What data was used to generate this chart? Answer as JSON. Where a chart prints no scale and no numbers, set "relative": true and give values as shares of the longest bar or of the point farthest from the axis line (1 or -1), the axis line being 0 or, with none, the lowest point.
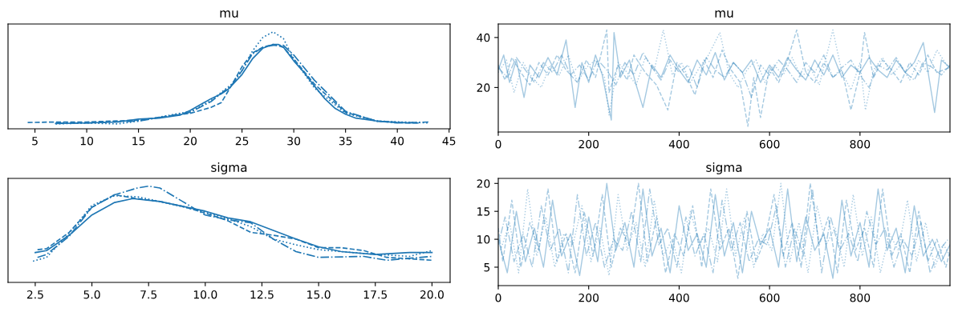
{
  "chart_data": [
    {
      "type": "line",
      "title": "mu",
      "relative": true,
      "tick_labels": "x",
      "grid": false,
      "xlim": [
        2.4,
        45.1
      ],
      "xticks": [
        5,
        10,
        15,
        20,
        25,
        30,
        35,
        40,
        45
      ],
      "series": [
        {
          "color": "#1f77b4",
          "line_style": "solid",
          "x": [
            7,
            10,
            13,
            15,
            17,
            19,
            20,
            22,
            23,
            23.7,
            25,
            26,
            27,
            28,
            28.5,
            29,
            30,
            31,
            32,
            33,
            34,
            35,
            36,
            38,
            40,
            42
          ],
          "values": [
            0.055,
            0.06,
            0.07,
            0.1,
            0.11,
            0.14,
            0.19,
            0.31,
            0.36,
            0.41,
            0.56,
            0.72,
            0.83,
            0.87,
            0.87,
            0.84,
            0.7,
            0.58,
            0.44,
            0.31,
            0.21,
            0.15,
            0.11,
            0.08,
            0.065,
            0.06
          ]
        },
        {
          "color": "#1f77b4",
          "line_style": "dashed",
          "x": [
            4.3,
            7,
            10,
            15,
            20,
            22,
            23,
            24,
            25,
            26,
            27,
            28,
            29,
            30,
            32,
            35,
            38,
            41,
            42
          ],
          "values": [
            0.065,
            0.07,
            0.07,
            0.09,
            0.16,
            0.22,
            0.27,
            0.45,
            0.64,
            0.78,
            0.84,
            0.87,
            0.84,
            0.72,
            0.46,
            0.17,
            0.08,
            0.06,
            0.06
          ]
        },
        {
          "color": "#1f77b4",
          "line_style": "dotted",
          "x": [
            7,
            10,
            13,
            15,
            20,
            22,
            24,
            25,
            26,
            27,
            28,
            29,
            30,
            32,
            35,
            38,
            43
          ],
          "values": [
            0.05,
            0.06,
            0.05,
            0.08,
            0.18,
            0.29,
            0.46,
            0.6,
            0.8,
            0.94,
            1.0,
            0.93,
            0.72,
            0.42,
            0.16,
            0.08,
            0.06
          ]
        },
        {
          "color": "#1f77b4",
          "line_style": "dashdot",
          "x": [
            7,
            10,
            15,
            20,
            22,
            24,
            25,
            26,
            27,
            28,
            29,
            30,
            32,
            35,
            38,
            40,
            43
          ],
          "values": [
            0.06,
            0.06,
            0.08,
            0.17,
            0.28,
            0.45,
            0.6,
            0.77,
            0.84,
            0.86,
            0.86,
            0.76,
            0.5,
            0.18,
            0.08,
            0.06,
            0.07
          ]
        }
      ]
    },
    {
      "type": "line",
      "title": "mu",
      "grid": false,
      "xlim": [
        0,
        999
      ],
      "xticks": [
        0,
        200,
        400,
        600,
        800
      ],
      "ylim": [
        2.2,
        45.4
      ],
      "yticks": [
        20,
        40
      ],
      "series": [
        {
          "color": "#1f77b4",
          "line_style": "solid",
          "x": [
            0,
            12,
            25,
            40,
            57,
            70,
            90,
            110,
            130,
            150,
            170,
            185,
            200,
            215,
            230,
            250,
            256,
            270,
            290,
            305,
            320,
            340,
            360,
            380,
            400,
            420,
            440,
            460,
            480,
            500,
            520,
            540,
            560,
            580,
            600,
            620,
            640,
            660,
            680,
            700,
            720,
            740,
            760,
            780,
            800,
            820,
            840,
            860,
            880,
            900,
            920,
            940,
            965,
            980,
            999
          ],
          "values": [
            27,
            33,
            22,
            31,
            16,
            29,
            24,
            32,
            25,
            39,
            12,
            30,
            22,
            33,
            25,
            7,
            42,
            24,
            31,
            21,
            12,
            29,
            24,
            33,
            27,
            22,
            31,
            25,
            34,
            23,
            30,
            26,
            31,
            22,
            29,
            24,
            32,
            27,
            23,
            31,
            25,
            33,
            24,
            29,
            26,
            32,
            27,
            24,
            31,
            26,
            30,
            38,
            10,
            31,
            28
          ]
        },
        {
          "color": "#1f77b4",
          "line_style": "dashed",
          "x": [
            0,
            15,
            30,
            50,
            70,
            90,
            110,
            130,
            150,
            175,
            195,
            215,
            240,
            245,
            265,
            285,
            300,
            325,
            350,
            375,
            395,
            415,
            435,
            455,
            475,
            495,
            515,
            535,
            552,
            565,
            580,
            600,
            620,
            640,
            660,
            680,
            700,
            720,
            740,
            760,
            780,
            800,
            810,
            830,
            850,
            870,
            890,
            910,
            930,
            950,
            970,
            999
          ],
          "values": [
            29,
            23,
            32,
            26,
            21,
            30,
            25,
            33,
            27,
            22,
            31,
            24,
            43,
            18,
            29,
            23,
            33,
            26,
            21,
            11,
            30,
            25,
            17,
            31,
            24,
            35,
            27,
            22,
            4.5,
            24,
            8,
            28,
            22,
            31,
            43,
            26,
            22,
            30,
            24,
            27,
            11,
            26,
            42,
            24,
            31,
            27,
            22,
            30,
            25,
            33,
            26,
            28
          ]
        },
        {
          "color": "#1f77b4",
          "line_style": "dotted",
          "x": [
            0,
            18,
            35,
            55,
            75,
            95,
            115,
            135,
            155,
            175,
            195,
            215,
            235,
            245,
            265,
            285,
            305,
            325,
            345,
            365,
            385,
            405,
            425,
            445,
            465,
            490,
            510,
            530,
            550,
            570,
            590,
            610,
            630,
            650,
            670,
            690,
            710,
            740,
            760,
            780,
            800,
            812,
            830,
            850,
            870,
            890,
            910,
            930,
            950,
            970,
            999
          ],
          "values": [
            26,
            31,
            18,
            30,
            24,
            20,
            29,
            25,
            33,
            22,
            28,
            31,
            24,
            9,
            30,
            26,
            21,
            32,
            27,
            43,
            25,
            30,
            22,
            28,
            33,
            42,
            26,
            20,
            27,
            31,
            22,
            29,
            25,
            32,
            24,
            28,
            21,
            43,
            26,
            19,
            30,
            11,
            27,
            32,
            25,
            29,
            23,
            31,
            26,
            35,
            27
          ]
        },
        {
          "color": "#1f77b4",
          "line_style": "dashdot",
          "x": [
            0,
            20,
            40,
            60,
            80,
            100,
            120,
            140,
            160,
            180,
            200,
            220,
            240,
            260,
            280,
            300,
            320,
            340,
            360,
            380,
            400,
            420,
            440,
            460,
            480,
            500,
            520,
            540,
            560,
            580,
            600,
            620,
            640,
            660,
            680,
            700,
            720,
            740,
            760,
            780,
            800,
            820,
            840,
            860,
            880,
            900,
            920,
            940,
            960,
            980,
            999
          ],
          "values": [
            28,
            24,
            32,
            27,
            22,
            30,
            26,
            33,
            25,
            29,
            23,
            31,
            27,
            21,
            30,
            25,
            34,
            28,
            23,
            31,
            26,
            29,
            20,
            32,
            27,
            24,
            30,
            26,
            16,
            29,
            25,
            31,
            27,
            22,
            30,
            26,
            33,
            24,
            28,
            31,
            25,
            20,
            29,
            27,
            32,
            26,
            23,
            30,
            28,
            25,
            29
          ]
        }
      ]
    },
    {
      "type": "line",
      "title": "sigma",
      "relative": true,
      "tick_labels": "x",
      "grid": false,
      "xlim": [
        1.3,
        20.8
      ],
      "xticks": [
        {
          "value": 2.5,
          "label": "2.5"
        },
        {
          "value": 5,
          "label": "5.0"
        },
        {
          "value": 7.5,
          "label": "7.5"
        },
        {
          "value": 10,
          "label": "10.0"
        },
        {
          "value": 12.5,
          "label": "12.5"
        },
        {
          "value": 15,
          "label": "15.0"
        },
        {
          "value": 17.5,
          "label": "17.5"
        },
        {
          "value": 20,
          "label": "20.0"
        }
      ],
      "series": [
        {
          "color": "#1f77b4",
          "line_style": "solid",
          "x": [
            2.5,
            3,
            4,
            5,
            6,
            6.8,
            8,
            10,
            11,
            12,
            13,
            14,
            15,
            16,
            17.5,
            19,
            20
          ],
          "values": [
            0.31,
            0.33,
            0.49,
            0.7,
            0.83,
            0.87,
            0.84,
            0.74,
            0.67,
            0.63,
            0.54,
            0.45,
            0.37,
            0.32,
            0.29,
            0.31,
            0.31
          ]
        },
        {
          "color": "#1f77b4",
          "line_style": "dashed",
          "x": [
            2.6,
            3,
            4,
            5,
            6,
            7,
            8,
            9,
            10,
            11,
            12,
            13,
            14,
            15,
            16,
            17,
            18,
            20
          ],
          "values": [
            0.34,
            0.35,
            0.52,
            0.78,
            0.91,
            0.87,
            0.84,
            0.79,
            0.72,
            0.64,
            0.52,
            0.49,
            0.45,
            0.36,
            0.36,
            0.33,
            0.26,
            0.23
          ]
        },
        {
          "color": "#1f77b4",
          "line_style": "dotted",
          "x": [
            2.4,
            3,
            4,
            5,
            6,
            7,
            8,
            10,
            11,
            12,
            13,
            14,
            15,
            17,
            19,
            20
          ],
          "values": [
            0.22,
            0.26,
            0.51,
            0.8,
            0.9,
            0.89,
            0.84,
            0.73,
            0.66,
            0.58,
            0.45,
            0.39,
            0.34,
            0.3,
            0.27,
            0.33
          ]
        },
        {
          "color": "#1f77b4",
          "line_style": "dashdot",
          "x": [
            2.6,
            3,
            4,
            5,
            6,
            7,
            7.5,
            8,
            9,
            10,
            11,
            12,
            13,
            14,
            15,
            17,
            18,
            19,
            20
          ],
          "values": [
            0.26,
            0.29,
            0.48,
            0.78,
            0.91,
            0.98,
            1.0,
            0.98,
            0.84,
            0.7,
            0.65,
            0.62,
            0.45,
            0.32,
            0.26,
            0.27,
            0.23,
            0.25,
            0.27
          ]
        }
      ]
    },
    {
      "type": "line",
      "title": "sigma",
      "grid": false,
      "xlim": [
        0,
        999
      ],
      "xticks": [
        0,
        200,
        400,
        600,
        800
      ],
      "ylim": [
        1.7,
        20.9
      ],
      "yticks": [
        5,
        10,
        15,
        20
      ],
      "series": [
        {
          "color": "#1f77b4",
          "line_style": "solid",
          "x": [
            0,
            20,
            40,
            60,
            80,
            100,
            120,
            140,
            160,
            180,
            200,
            220,
            240,
            260,
            280,
            300,
            320,
            340,
            360,
            380,
            400,
            420,
            440,
            460,
            480,
            500,
            520,
            540,
            560,
            580,
            600,
            620,
            640,
            660,
            680,
            700,
            720,
            740,
            760,
            780,
            800,
            820,
            840,
            860,
            880,
            900,
            920,
            940,
            960,
            980,
            999
          ],
          "values": [
            10,
            4,
            15,
            6,
            12,
            5,
            17,
            7,
            11,
            3.5,
            14,
            6,
            20,
            8,
            13,
            5,
            19,
            7,
            12,
            4,
            16,
            8,
            11,
            5,
            18,
            7,
            13,
            4,
            15,
            9,
            12,
            5,
            19,
            6,
            14,
            8,
            11,
            3,
            17,
            7,
            13,
            5,
            19,
            8,
            12,
            4,
            16,
            7,
            10,
            6,
            9
          ]
        },
        {
          "color": "#1f77b4",
          "line_style": "dashed",
          "x": [
            0,
            10,
            30,
            50,
            70,
            90,
            110,
            130,
            150,
            170,
            190,
            210,
            230,
            250,
            270,
            290,
            310,
            330,
            350,
            370,
            390,
            410,
            430,
            450,
            470,
            490,
            510,
            530,
            550,
            570,
            590,
            610,
            630,
            650,
            670,
            690,
            710,
            730,
            750,
            770,
            790,
            810,
            830,
            850,
            870,
            890,
            910,
            930,
            950,
            970,
            990,
            999
          ],
          "values": [
            12,
            6,
            17,
            5,
            13,
            8,
            19,
            6,
            11,
            4,
            15,
            7,
            18,
            5,
            12,
            9,
            20,
            6,
            14,
            4,
            11,
            7,
            16,
            5,
            19,
            8,
            12,
            3,
            15,
            6,
            10,
            18,
            7,
            13,
            5,
            20,
            9,
            14,
            4,
            17,
            8,
            12,
            5,
            19,
            7,
            11,
            4,
            15,
            6,
            10,
            5,
            8
          ]
        },
        {
          "color": "#1f77b4",
          "line_style": "dotted",
          "x": [
            5,
            25,
            45,
            65,
            85,
            105,
            125,
            145,
            165,
            185,
            205,
            225,
            245,
            265,
            285,
            305,
            325,
            345,
            365,
            385,
            405,
            425,
            445,
            465,
            485,
            505,
            525,
            545,
            565,
            585,
            605,
            625,
            645,
            665,
            685,
            705,
            725,
            745,
            765,
            785,
            805,
            825,
            845,
            865,
            885,
            905,
            925,
            945,
            965,
            985,
            999
          ],
          "values": [
            8,
            13,
            4,
            19,
            7,
            14,
            5,
            11,
            9,
            16,
            6,
            12,
            3.5,
            18,
            8,
            13,
            5,
            17,
            7,
            10,
            4,
            15,
            9,
            12,
            6,
            19,
            7,
            14,
            5,
            11,
            8,
            20,
            6,
            13,
            4,
            16,
            9,
            12,
            5,
            18,
            7,
            14,
            4,
            11,
            8,
            17,
            6,
            13,
            5,
            9,
            7
          ]
        },
        {
          "color": "#1f77b4",
          "line_style": "dashdot",
          "x": [
            0,
            15,
            35,
            55,
            75,
            95,
            115,
            135,
            155,
            175,
            195,
            215,
            235,
            255,
            275,
            295,
            315,
            335,
            355,
            375,
            395,
            415,
            435,
            455,
            475,
            495,
            515,
            535,
            555,
            575,
            595,
            615,
            635,
            655,
            675,
            695,
            715,
            735,
            755,
            775,
            795,
            815,
            835,
            855,
            875,
            895,
            915,
            935,
            955,
            975,
            995
          ],
          "values": [
            9,
            14,
            6,
            11,
            5,
            16,
            8,
            12,
            4,
            18,
            7,
            13,
            5,
            10,
            8,
            15,
            6,
            19,
            9,
            12,
            5,
            14,
            7,
            11,
            4,
            17,
            8,
            13,
            6,
            10,
            9,
            16,
            5,
            12,
            7,
            19,
            4,
            14,
            8,
            11,
            6,
            15,
            9,
            12,
            5,
            10,
            7,
            13,
            4,
            8,
            10
          ]
        }
      ]
    }
  ]
}
